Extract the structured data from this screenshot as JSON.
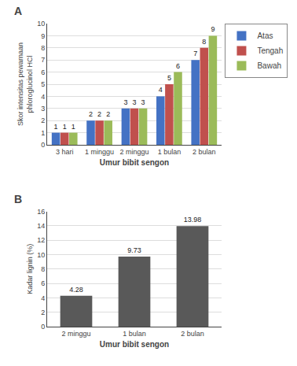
{
  "chart_data": [
    {
      "type": "bar",
      "title": "A",
      "categories": [
        "3 hari",
        "1 minggu",
        "2 minggu",
        "1 bulan",
        "2 bulan"
      ],
      "series": [
        {
          "name": "Atas",
          "color": "#4472c4",
          "values": [
            1,
            2,
            3,
            4,
            7
          ]
        },
        {
          "name": "Tengah",
          "color": "#c0504d",
          "values": [
            1,
            2,
            3,
            5,
            8
          ]
        },
        {
          "name": "Bawah",
          "color": "#9bbb59",
          "values": [
            1,
            2,
            3,
            6,
            9
          ]
        }
      ],
      "ylabel": "Skor intensitas pewarnaan\nphloroglucinol HCl",
      "xlabel": "Umur bibit sengon",
      "ylim": [
        0,
        10
      ],
      "yticks": [
        0,
        1,
        2,
        3,
        4,
        5,
        6,
        7,
        8,
        9,
        10
      ],
      "grid": true,
      "legend": "right",
      "data_labels": true
    },
    {
      "type": "bar",
      "title": "B",
      "categories": [
        "2 minggu",
        "1 bulan",
        "2 bulan"
      ],
      "values": [
        4.28,
        9.73,
        13.98
      ],
      "color": "#595959",
      "ylabel": "Kadar lignin (%)",
      "xlabel": "Umur bibit sengon",
      "ylim": [
        0,
        16
      ],
      "yticks": [
        0,
        2,
        4,
        6,
        8,
        10,
        12,
        14,
        16
      ],
      "grid": true,
      "data_labels": true
    }
  ]
}
